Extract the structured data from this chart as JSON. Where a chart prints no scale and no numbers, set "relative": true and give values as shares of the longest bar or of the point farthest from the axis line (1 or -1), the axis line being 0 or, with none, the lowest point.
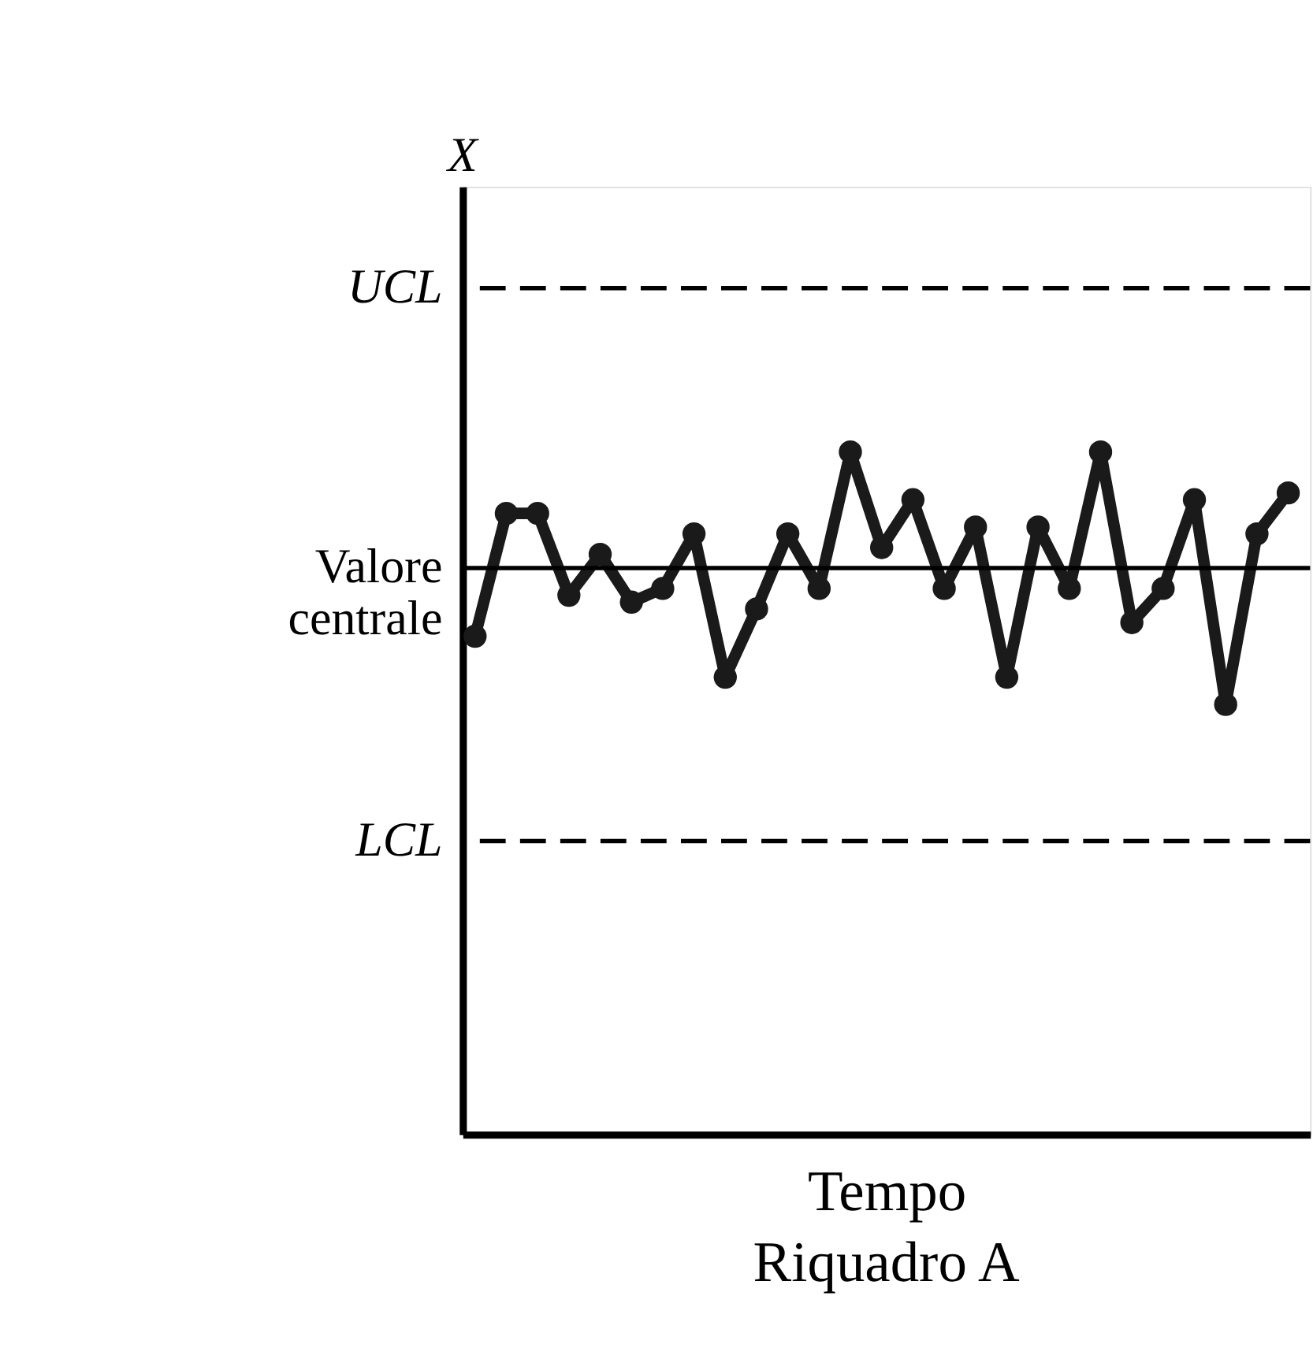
{
  "chart_data": {
    "type": "line",
    "relative": true,
    "xlabel": "Tempo",
    "categories": [
      null,
      null,
      null,
      null,
      null,
      null,
      null,
      null,
      null,
      null,
      null,
      null,
      null,
      null,
      null,
      null,
      null,
      null,
      null,
      null,
      null,
      null,
      null,
      null,
      null,
      null,
      null
    ],
    "series": [
      {
        "color": "#1a1a1a",
        "values": [
          0.73,
          0.91,
          0.91,
          0.79,
          0.85,
          0.78,
          0.8,
          0.88,
          0.67,
          0.77,
          0.88,
          0.8,
          1.0,
          0.86,
          0.93,
          0.8,
          0.89,
          0.67,
          0.89,
          0.8,
          1.0,
          0.75,
          0.8,
          0.93,
          0.63,
          0.88,
          0.94
        ]
      }
    ],
    "marker": "circle",
    "line_style": "solid",
    "grid": false,
    "ref_lines": [
      {
        "axis": "y",
        "value": 1.24,
        "label": "UCL",
        "line_style": "dashed",
        "color": "#000000"
      },
      {
        "axis": "y",
        "value": 0.83,
        "label": "Valore centrale",
        "line_style": "solid",
        "color": "#000000"
      },
      {
        "axis": "y",
        "value": 0.43,
        "label": "LCL",
        "line_style": "dashed",
        "color": "#000000"
      }
    ],
    "annotations": [
      "X",
      "Riquadro A"
    ]
  }
}
